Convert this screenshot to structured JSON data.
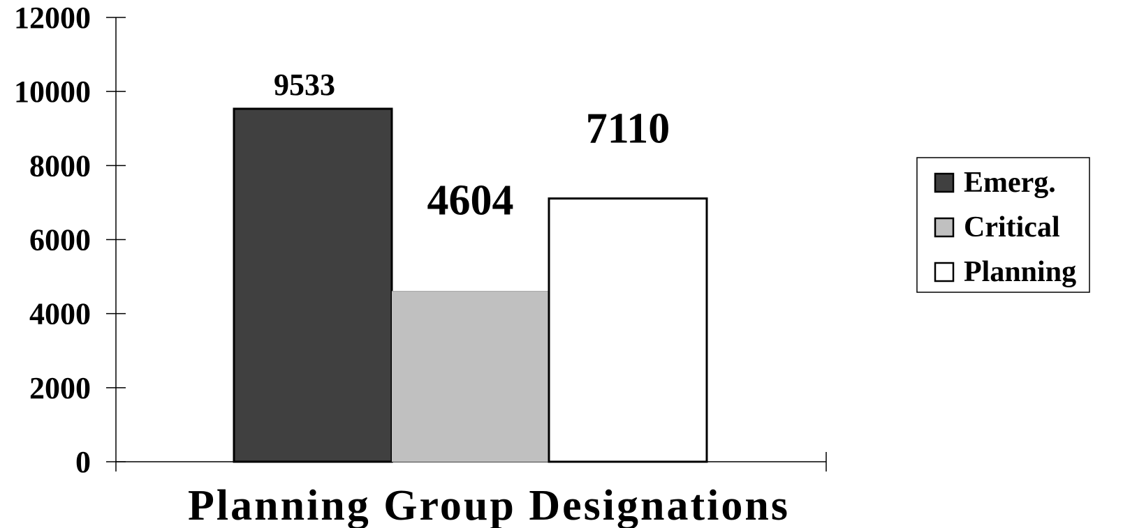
{
  "chart_data": {
    "type": "bar",
    "categories": [
      ""
    ],
    "series": [
      {
        "name": "Emerg.",
        "values": [
          9533
        ],
        "color": "#404040"
      },
      {
        "name": "Critical",
        "values": [
          4604
        ],
        "color": "#c0c0c0"
      },
      {
        "name": "Planning",
        "values": [
          7110
        ],
        "color": "#ffffff"
      }
    ],
    "data_labels": [
      "9533",
      "4604",
      "7110"
    ],
    "title": "",
    "xlabel": "Planning Group Designations",
    "ylabel": "",
    "ylim": [
      0,
      12000
    ],
    "yticks": [
      "0",
      "2000",
      "4000",
      "6000",
      "8000",
      "10000",
      "12000"
    ],
    "grid": false,
    "legend_position": "right"
  }
}
